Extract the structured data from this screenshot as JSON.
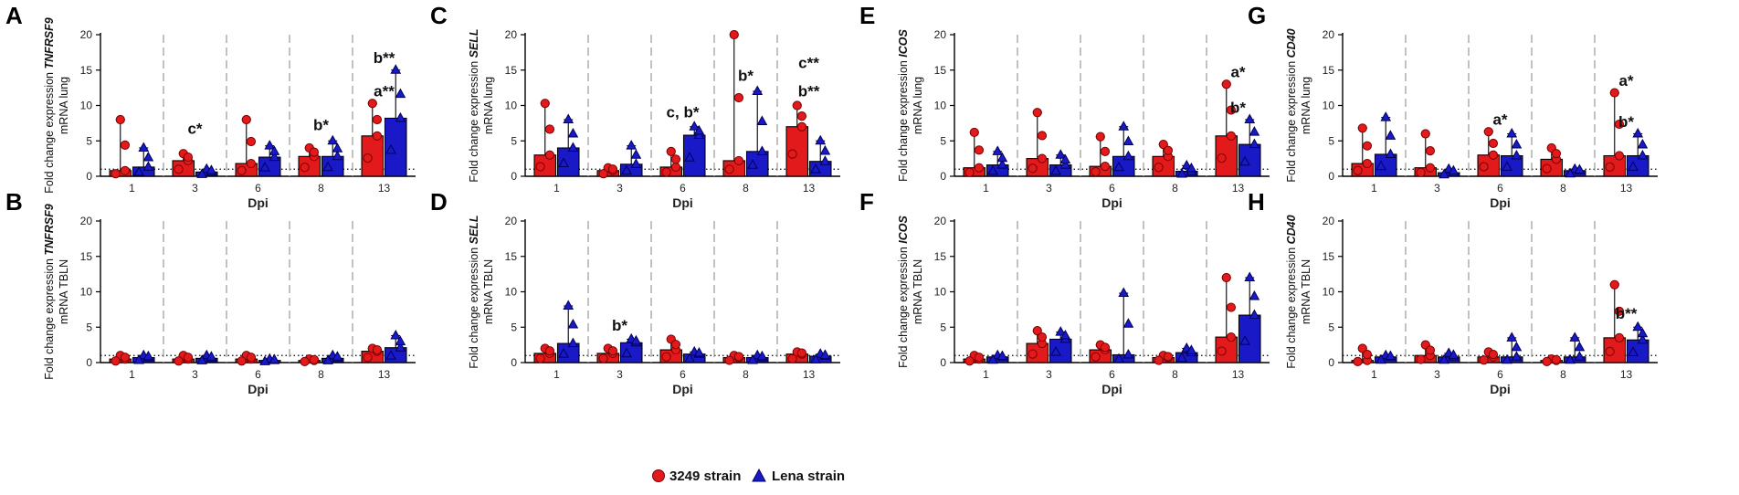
{
  "figure": {
    "legend": [
      {
        "label": "3249 strain",
        "color": "#e31a1c",
        "marker": "circle"
      },
      {
        "label": "Lena strain",
        "color": "#1919c8",
        "marker": "triangle"
      }
    ]
  },
  "chart_data": [
    {
      "panel": "A",
      "type": "bar",
      "ylabel_pre": "Fold change expression",
      "ylabel_gene": "TNFRSF9",
      "ylabel_post": "mRNA lung",
      "xlabel": "Dpi",
      "categories": [
        "1",
        "3",
        "6",
        "8",
        "13"
      ],
      "ylim": [
        0,
        20
      ],
      "yticks": [
        "0",
        "5",
        "10",
        "15",
        "20"
      ],
      "series": [
        {
          "name": "3249 strain",
          "values": [
            0.8,
            2.2,
            1.8,
            2.8,
            5.7
          ],
          "upper": [
            8,
            3.2,
            8,
            4,
            10.3
          ]
        },
        {
          "name": "Lena strain",
          "values": [
            1.3,
            0.6,
            2.7,
            2.8,
            8.2
          ],
          "upper": [
            4,
            1,
            4.3,
            5,
            15
          ]
        }
      ],
      "annotations": [
        {
          "cat": 1,
          "text": "c*",
          "value": 6
        },
        {
          "cat": 3,
          "text": "b*",
          "value": 6.5
        },
        {
          "cat": 4,
          "text": "a**",
          "value": 11.3
        },
        {
          "cat": 4,
          "text": "b**",
          "value": 16
        }
      ]
    },
    {
      "panel": "B",
      "type": "bar",
      "ylabel_pre": "Fold change expression",
      "ylabel_gene": "TNFRSF9",
      "ylabel_post": "mRNA TBLN",
      "xlabel": "Dpi",
      "categories": [
        "1",
        "3",
        "6",
        "8",
        "13"
      ],
      "ylim": [
        0,
        20
      ],
      "yticks": [
        "0",
        "5",
        "10",
        "15",
        "20"
      ],
      "series": [
        {
          "name": "3249 strain",
          "values": [
            0.5,
            0.5,
            0.5,
            0.3,
            1.6
          ],
          "upper": [
            1,
            1,
            1,
            0.5,
            2
          ]
        },
        {
          "name": "Lena strain",
          "values": [
            0.7,
            0.6,
            0.3,
            0.6,
            2.1
          ],
          "upper": [
            1,
            1,
            0.5,
            1,
            3.8
          ]
        }
      ],
      "annotations": []
    },
    {
      "panel": "C",
      "type": "bar",
      "ylabel_pre": "Fold change expression",
      "ylabel_gene": "SELL",
      "ylabel_post": "mRNA lung",
      "xlabel": "Dpi",
      "categories": [
        "1",
        "3",
        "6",
        "8",
        "13"
      ],
      "ylim": [
        0,
        20
      ],
      "yticks": [
        "0",
        "5",
        "10",
        "15",
        "20"
      ],
      "series": [
        {
          "name": "3249 strain",
          "values": [
            3,
            0.8,
            1.3,
            2.2,
            7
          ],
          "upper": [
            10.3,
            1.2,
            3.5,
            20,
            10
          ]
        },
        {
          "name": "Lena strain",
          "values": [
            4,
            1.7,
            5.8,
            3.5,
            2.1
          ],
          "upper": [
            8,
            4.3,
            7,
            12,
            5
          ]
        }
      ],
      "annotations": [
        {
          "cat": 2,
          "text": "c, b*",
          "value": 8.3
        },
        {
          "cat": 3,
          "text": "b*",
          "value": 13.5
        },
        {
          "cat": 4,
          "text": "b**",
          "value": 11.3
        },
        {
          "cat": 4,
          "text": "c**",
          "value": 15.3
        }
      ]
    },
    {
      "panel": "D",
      "type": "bar",
      "ylabel_pre": "Fold change expression",
      "ylabel_gene": "SELL",
      "ylabel_post": "mRNA TBLN",
      "xlabel": "Dpi",
      "categories": [
        "1",
        "3",
        "6",
        "8",
        "13"
      ],
      "ylim": [
        0,
        20
      ],
      "yticks": [
        "0",
        "5",
        "10",
        "15",
        "20"
      ],
      "series": [
        {
          "name": "3249 strain",
          "values": [
            1.3,
            1.3,
            1.8,
            0.7,
            1.2
          ],
          "upper": [
            2,
            2,
            3.3,
            1,
            1.5
          ]
        },
        {
          "name": "Lena strain",
          "values": [
            2.7,
            2.8,
            1.2,
            0.7,
            0.9
          ],
          "upper": [
            8,
            3.3,
            1.5,
            1,
            1.2
          ]
        }
      ],
      "annotations": [
        {
          "cat": 1,
          "text": "b*",
          "value": 4.5
        }
      ]
    },
    {
      "panel": "E",
      "type": "bar",
      "ylabel_pre": "Fold change expression",
      "ylabel_gene": "ICOS",
      "ylabel_post": "mRNA lung",
      "xlabel": "Dpi",
      "categories": [
        "1",
        "3",
        "6",
        "8",
        "13"
      ],
      "ylim": [
        0,
        20
      ],
      "yticks": [
        "0",
        "5",
        "10",
        "15",
        "20"
      ],
      "series": [
        {
          "name": "3249 strain",
          "values": [
            1.2,
            2.5,
            1.4,
            2.8,
            5.7
          ],
          "upper": [
            6.2,
            9,
            5.6,
            4.5,
            13
          ]
        },
        {
          "name": "Lena strain",
          "values": [
            1.6,
            1.6,
            2.8,
            0.7,
            4.5
          ],
          "upper": [
            3.5,
            3,
            7,
            1.5,
            8
          ]
        }
      ],
      "annotations": [
        {
          "cat": 4,
          "text": "a*",
          "value": 14
        },
        {
          "cat": 4,
          "text": "b*",
          "value": 9
        }
      ]
    },
    {
      "panel": "F",
      "type": "bar",
      "ylabel_pre": "Fold change expression",
      "ylabel_gene": "ICOS",
      "ylabel_post": "mRNA TBLN",
      "xlabel": "Dpi",
      "categories": [
        "1",
        "3",
        "6",
        "8",
        "13"
      ],
      "ylim": [
        0,
        20
      ],
      "yticks": [
        "0",
        "5",
        "10",
        "15",
        "20"
      ],
      "series": [
        {
          "name": "3249 strain",
          "values": [
            0.5,
            2.7,
            1.8,
            0.7,
            3.6
          ],
          "upper": [
            1,
            4.5,
            2.5,
            1,
            12
          ]
        },
        {
          "name": "Lena strain",
          "values": [
            0.8,
            3.3,
            1.1,
            1.4,
            6.7
          ],
          "upper": [
            1,
            4.3,
            9.8,
            2,
            12
          ]
        }
      ],
      "annotations": []
    },
    {
      "panel": "G",
      "type": "bar",
      "ylabel_pre": "Fold change expression",
      "ylabel_gene": "CD40",
      "ylabel_post": "mRNA lung",
      "xlabel": "Dpi",
      "categories": [
        "1",
        "3",
        "6",
        "8",
        "13"
      ],
      "ylim": [
        0,
        20
      ],
      "yticks": [
        "0",
        "5",
        "10",
        "15",
        "20"
      ],
      "series": [
        {
          "name": "3249 strain",
          "values": [
            1.8,
            1.2,
            3,
            2.4,
            2.9
          ],
          "upper": [
            6.8,
            6,
            6.3,
            4,
            11.8
          ]
        },
        {
          "name": "Lena strain",
          "values": [
            3.1,
            0.5,
            2.9,
            0.8,
            2.9
          ],
          "upper": [
            8.3,
            1,
            6,
            1,
            6
          ]
        }
      ],
      "annotations": [
        {
          "cat": 2,
          "text": "a*",
          "value": 7.3
        },
        {
          "cat": 4,
          "text": "a*",
          "value": 12.8
        },
        {
          "cat": 4,
          "text": "b*",
          "value": 7
        }
      ]
    },
    {
      "panel": "H",
      "type": "bar",
      "ylabel_pre": "Fold change expression",
      "ylabel_gene": "CD40",
      "ylabel_post": "mRNA TBLN",
      "xlabel": "Dpi",
      "categories": [
        "1",
        "3",
        "6",
        "8",
        "13"
      ],
      "ylim": [
        0,
        20
      ],
      "yticks": [
        "0",
        "5",
        "10",
        "15",
        "20"
      ],
      "series": [
        {
          "name": "3249 strain",
          "values": [
            0.3,
            1,
            0.8,
            0.3,
            3.5
          ],
          "upper": [
            2,
            2.5,
            1.5,
            0.5,
            11
          ]
        },
        {
          "name": "Lena strain",
          "values": [
            0.8,
            0.8,
            0.8,
            0.8,
            3.2
          ],
          "upper": [
            1,
            1.3,
            3.5,
            3.5,
            5
          ]
        }
      ],
      "annotations": [
        {
          "cat": 4,
          "text": "b**",
          "value": 6.2
        }
      ]
    }
  ]
}
